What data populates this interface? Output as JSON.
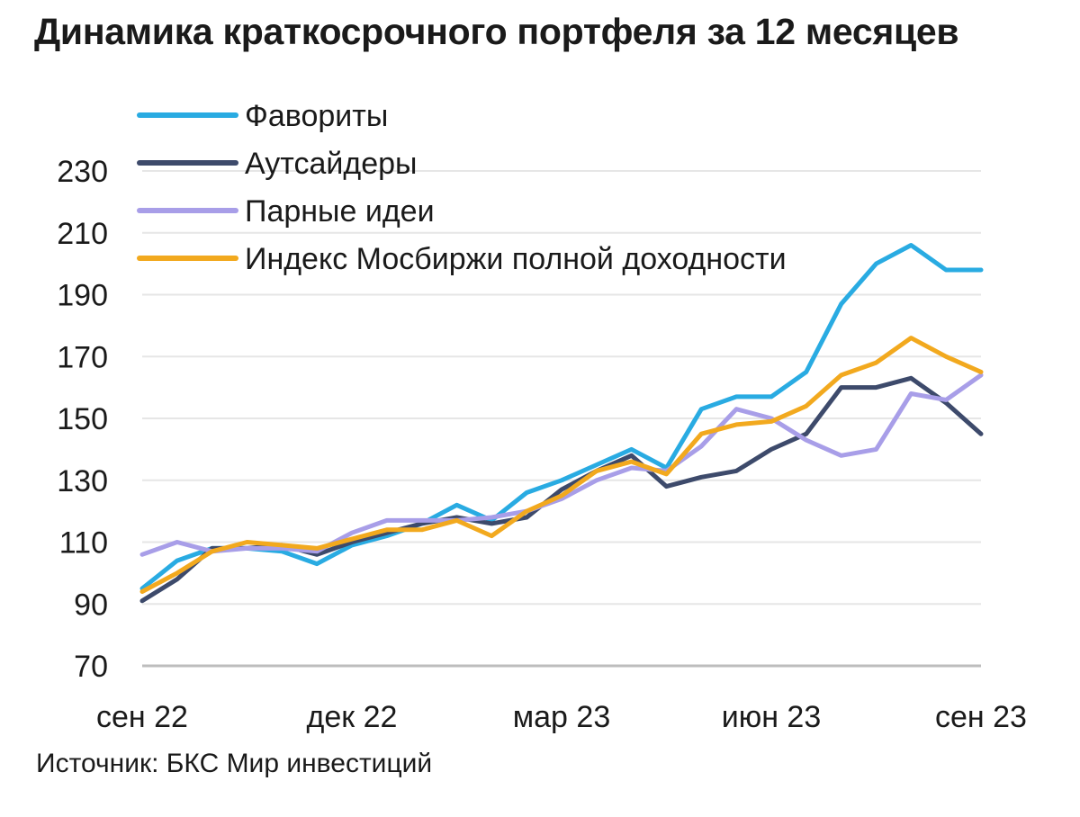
{
  "title": "Динамика краткосрочного портфеля за 12 месяцев",
  "source": "Источник: БКС Мир инвестиций",
  "chart_data": {
    "type": "line",
    "title": "Динамика краткосрочного портфеля за 12 месяцев",
    "xlabel": "",
    "ylabel": "",
    "ylim": [
      70,
      230
    ],
    "yticks": [
      70,
      90,
      110,
      130,
      150,
      170,
      190,
      210,
      230
    ],
    "xticks": [
      "сен 22",
      "дек 22",
      "мар 23",
      "июн 23",
      "сен 23"
    ],
    "xtick_positions": [
      0,
      3,
      6,
      9,
      12
    ],
    "grid": true,
    "legend_position": "top-left",
    "x": [
      0,
      0.5,
      1,
      1.5,
      2,
      2.5,
      3,
      3.5,
      4,
      4.5,
      5,
      5.5,
      6,
      6.5,
      7,
      7.5,
      8,
      8.5,
      9,
      9.5,
      10,
      10.5,
      11,
      11.5,
      12
    ],
    "series": [
      {
        "name": "Фавориты",
        "color": "#29abe2",
        "values": [
          95,
          104,
          108,
          108,
          107,
          103,
          109,
          112,
          116,
          122,
          117,
          126,
          130,
          135,
          140,
          134,
          153,
          157,
          157,
          165,
          187,
          200,
          206,
          198,
          198
        ]
      },
      {
        "name": "Аутсайдеры",
        "color": "#3d4a6b",
        "values": [
          91,
          98,
          108,
          108,
          109,
          106,
          110,
          113,
          116,
          118,
          116,
          118,
          127,
          133,
          138,
          128,
          131,
          133,
          140,
          145,
          160,
          160,
          163,
          155,
          145
        ]
      },
      {
        "name": "Парные идеи",
        "color": "#a89ee8",
        "values": [
          106,
          110,
          107,
          108,
          108,
          107,
          113,
          117,
          117,
          117,
          118,
          120,
          124,
          130,
          134,
          133,
          141,
          153,
          150,
          143,
          138,
          140,
          158,
          156,
          164
        ]
      },
      {
        "name": "Индекс Мосбиржи полной доходности",
        "color": "#f2a91e",
        "values": [
          94,
          100,
          107,
          110,
          109,
          108,
          111,
          114,
          114,
          117,
          112,
          120,
          125,
          133,
          136,
          132,
          145,
          148,
          149,
          154,
          164,
          168,
          176,
          170,
          165
        ]
      }
    ]
  }
}
